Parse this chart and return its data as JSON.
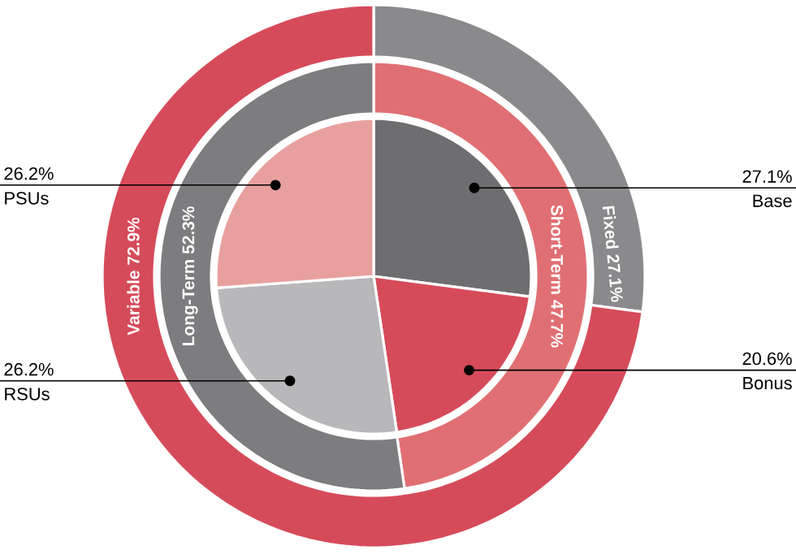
{
  "chart_data": [
    {
      "type": "pie",
      "categories": [
        "Base",
        "Bonus",
        "RSUs",
        "PSUs"
      ],
      "values": [
        27.1,
        20.6,
        26.2,
        26.2
      ],
      "value_labels": [
        "27.1%",
        "20.6%",
        "26.2%",
        "26.2%"
      ],
      "colors": [
        "#6e6d70",
        "#d64b5a",
        "#b8b8bb",
        "#e8a09f"
      ]
    },
    {
      "type": "donut",
      "categories": [
        "Short-Term",
        "Long-Term"
      ],
      "values": [
        47.7,
        52.3
      ],
      "value_labels": [
        "47.7%",
        "52.3%"
      ],
      "colors": [
        "#e06f73",
        "#7d7d80"
      ]
    },
    {
      "type": "donut",
      "categories": [
        "Fixed",
        "Variable"
      ],
      "values": [
        27.1,
        72.9
      ],
      "value_labels": [
        "27.1%",
        "72.9%"
      ],
      "colors": [
        "#8a8a8d",
        "#d64b5a"
      ]
    }
  ]
}
